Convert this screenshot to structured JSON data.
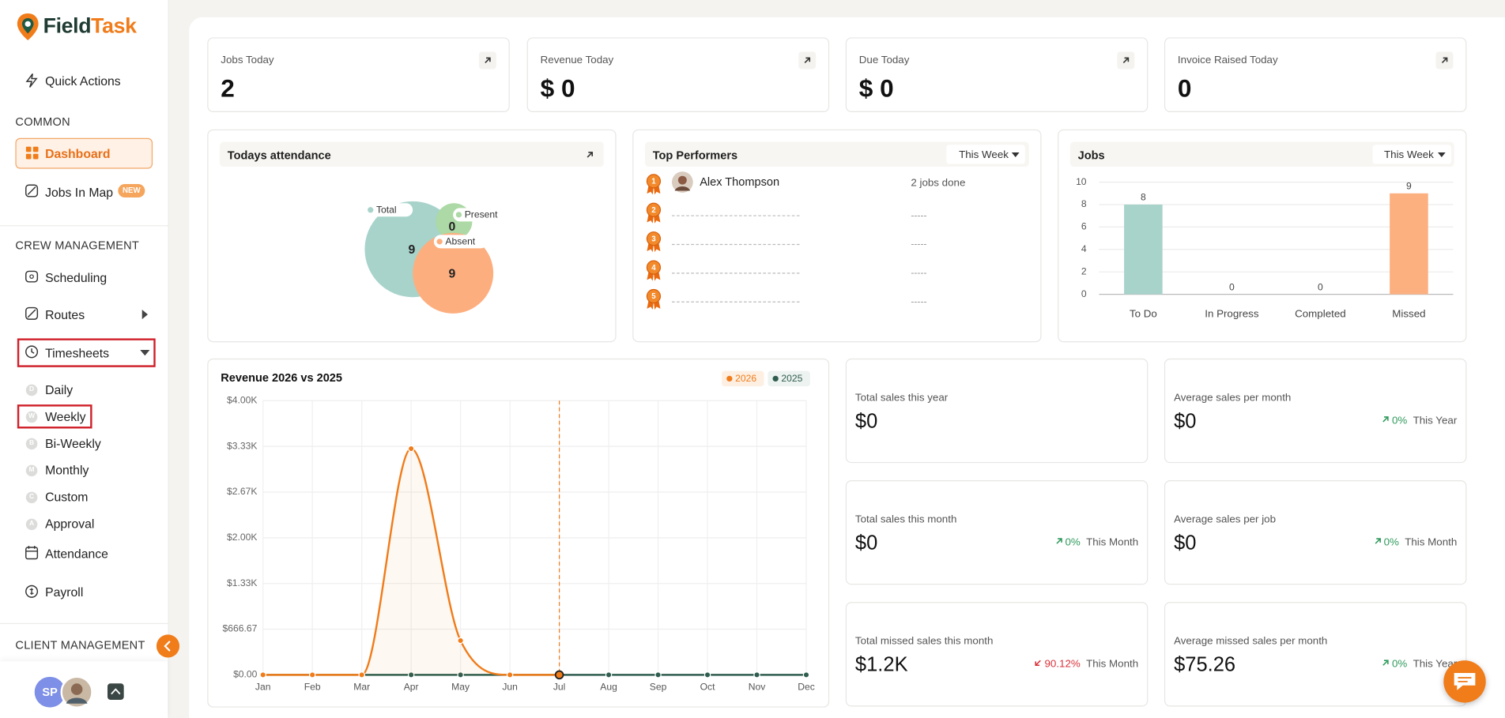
{
  "sidebar": {
    "brand": {
      "first": "Field",
      "second": "Task"
    },
    "quick_actions": "Quick Actions",
    "common": {
      "heading": "COMMON",
      "dashboard": "Dashboard",
      "jobs_in_map": "Jobs In Map",
      "badge": "NEW"
    },
    "crew": {
      "heading": "CREW MANAGEMENT",
      "scheduling": "Scheduling",
      "routes": "Routes",
      "timesheets": "Timesheets",
      "timesheet_items": [
        {
          "letter": "D",
          "label": "Daily"
        },
        {
          "letter": "W",
          "label": "Weekly"
        },
        {
          "letter": "B",
          "label": "Bi-Weekly"
        },
        {
          "letter": "M",
          "label": "Monthly"
        },
        {
          "letter": "C",
          "label": "Custom"
        },
        {
          "letter": "A",
          "label": "Approval"
        }
      ],
      "attendance": "Attendance",
      "payroll": "Payroll"
    },
    "client_heading": "CLIENT MANAGEMENT",
    "user_initials": "SP"
  },
  "stats": [
    {
      "label": "Jobs Today",
      "value": "2"
    },
    {
      "label": "Revenue Today",
      "value": "$ 0"
    },
    {
      "label": "Due Today",
      "value": "$ 0"
    },
    {
      "label": "Invoice Raised Today",
      "value": "0"
    }
  ],
  "attendance": {
    "title": "Todays attendance",
    "items": [
      {
        "name": "Total",
        "value": 9,
        "color": "#a7d3cb"
      },
      {
        "name": "Present",
        "value": 0,
        "color": "#acd9a5"
      },
      {
        "name": "Absent",
        "value": 9,
        "color": "#fdae7f"
      }
    ]
  },
  "top_performers": {
    "title": "Top Performers",
    "filter": "This Week",
    "ranks": [
      1,
      2,
      3,
      4,
      5
    ],
    "rows": [
      {
        "name": "Alex Thompson",
        "jobs": "2 jobs done"
      }
    ],
    "placeholder": "-----"
  },
  "chart_data": [
    {
      "type": "bar",
      "title": "Jobs",
      "filter": "This Week",
      "categories": [
        "To Do",
        "In Progress",
        "Completed",
        "Missed"
      ],
      "values": [
        8,
        0,
        0,
        9
      ],
      "colors": [
        "#a7d3cb",
        "#a7d3cb",
        "#a7d3cb",
        "#fdb07f"
      ],
      "ylim": [
        0,
        10
      ],
      "yticks": [
        0,
        2,
        4,
        6,
        8,
        10
      ],
      "grid": true
    },
    {
      "type": "line",
      "title": "Revenue 2026 vs 2025",
      "categories": [
        "Jan",
        "Feb",
        "Mar",
        "Apr",
        "May",
        "Jun",
        "Jul",
        "Aug",
        "Sep",
        "Oct",
        "Nov",
        "Dec"
      ],
      "series": [
        {
          "name": "2026",
          "color": "#f07c1a",
          "values": [
            0,
            0,
            0,
            3300,
            500,
            0,
            0,
            null,
            null,
            null,
            null,
            null
          ]
        },
        {
          "name": "2025",
          "color": "#2f5d4f",
          "values": [
            0,
            0,
            0,
            0,
            0,
            0,
            0,
            0,
            0,
            0,
            0,
            0
          ]
        }
      ],
      "ylim": [
        0,
        4000
      ],
      "yticks": [
        {
          "value": 0,
          "label": "$0.00"
        },
        {
          "value": 666.67,
          "label": "$666.67"
        },
        {
          "value": 1333.33,
          "label": "$1.33K"
        },
        {
          "value": 2000,
          "label": "$2.00K"
        },
        {
          "value": 2666.67,
          "label": "$2.67K"
        },
        {
          "value": 3333.33,
          "label": "$3.33K"
        },
        {
          "value": 4000,
          "label": "$4.00K"
        }
      ],
      "grid": true,
      "highlight": "Jul"
    }
  ],
  "sales": [
    {
      "label": "Total sales this year",
      "value": "$0"
    },
    {
      "label": "Average sales per month",
      "value": "$0",
      "change": "0%",
      "period": "This Year",
      "trend": "up"
    },
    {
      "label": "Total sales this month",
      "value": "$0",
      "change": "0%",
      "period": "This Month",
      "trend": "up"
    },
    {
      "label": "Average sales per job",
      "value": "$0",
      "change": "0%",
      "period": "This Month",
      "trend": "up"
    },
    {
      "label": "Total missed sales this month",
      "value": "$1.2K",
      "change": "90.12%",
      "period": "This Month",
      "trend": "down"
    },
    {
      "label": "Average missed sales per month",
      "value": "$75.26",
      "change": "0%",
      "period": "This Year",
      "trend": "up"
    }
  ]
}
